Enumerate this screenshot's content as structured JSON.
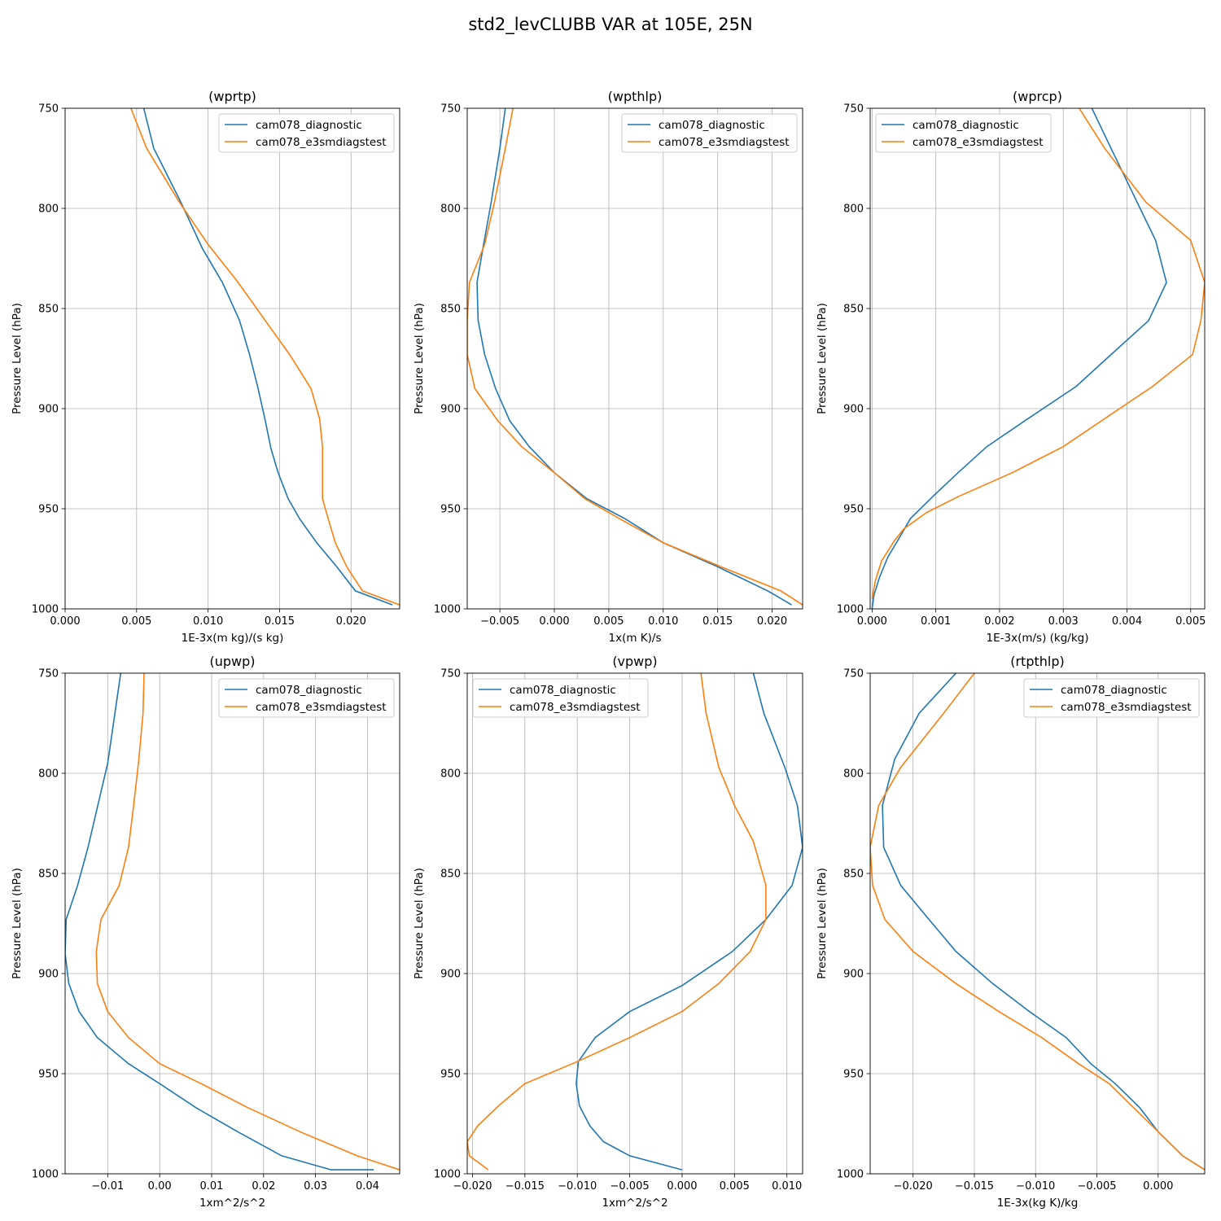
{
  "figure_title": "std2_levCLUBB VAR at 105E, 25N",
  "colors": {
    "cam078_diagnostic": "#1f77b4",
    "cam078_e3smdiagstest": "#ff7f0e",
    "grid": "#b0b0b0"
  },
  "chart_data": [
    {
      "type": "line",
      "title": "(wprtp)",
      "xlabel": "1E-3x(m kg)/(s kg)",
      "ylabel": "Pressure Level (hPa)",
      "xlim": [
        0.0,
        0.0234
      ],
      "ylim": [
        1000,
        750
      ],
      "xticks": [
        0.0,
        0.005,
        0.01,
        0.015,
        0.02
      ],
      "xtick_labels": [
        "0.000",
        "0.005",
        "0.010",
        "0.015",
        "0.020"
      ],
      "yticks": [
        750,
        800,
        850,
        900,
        950,
        1000
      ],
      "ytick_labels": [
        "750",
        "800",
        "850",
        "900",
        "950",
        "1000"
      ],
      "grid": true,
      "legend": "upper right",
      "series": [
        {
          "name": "cam078_diagnostic",
          "x": [
            0.0055,
            0.0062,
            0.0081,
            0.0096,
            0.011,
            0.0122,
            0.0129,
            0.0135,
            0.014,
            0.0144,
            0.0149,
            0.0156,
            0.0164,
            0.0176,
            0.019,
            0.0203,
            0.0229
          ],
          "y": [
            750,
            770,
            797,
            820,
            837,
            856,
            873,
            890,
            906,
            920,
            932,
            945,
            955,
            967,
            979,
            991,
            998
          ]
        },
        {
          "name": "cam078_e3smdiagstest",
          "x": [
            0.0046,
            0.0057,
            0.008,
            0.01,
            0.012,
            0.014,
            0.0157,
            0.0172,
            0.0178,
            0.018,
            0.018,
            0.0184,
            0.0189,
            0.0197,
            0.0208,
            0.0234
          ],
          "y": [
            750,
            770,
            797,
            818,
            836,
            856,
            873,
            890,
            905,
            919,
            945,
            955,
            967,
            979,
            991,
            998
          ]
        }
      ]
    },
    {
      "type": "line",
      "title": "(wpthlp)",
      "xlabel": "1x(m K)/s",
      "ylabel": "Pressure Level (hPa)",
      "xlim": [
        -0.008,
        0.0228
      ],
      "ylim": [
        1000,
        750
      ],
      "xticks": [
        -0.005,
        0.0,
        0.005,
        0.01,
        0.015,
        0.02
      ],
      "xtick_labels": [
        "−0.005",
        "0.000",
        "0.005",
        "0.010",
        "0.015",
        "0.020"
      ],
      "yticks": [
        750,
        800,
        850,
        900,
        950,
        1000
      ],
      "ytick_labels": [
        "750",
        "800",
        "850",
        "900",
        "950",
        "1000"
      ],
      "grid": true,
      "legend": "upper right",
      "series": [
        {
          "name": "cam078_diagnostic",
          "x": [
            -0.0045,
            -0.005,
            -0.0058,
            -0.0065,
            -0.0071,
            -0.007,
            -0.0064,
            -0.0054,
            -0.0041,
            -0.0023,
            0.0,
            0.003,
            0.0065,
            0.01,
            0.015,
            0.0196,
            0.0218
          ],
          "y": [
            750,
            770,
            797,
            818,
            837,
            856,
            873,
            890,
            906,
            919,
            932,
            945,
            955,
            967,
            979,
            991,
            998
          ]
        },
        {
          "name": "cam078_e3smdiagstest",
          "x": [
            -0.0038,
            -0.0045,
            -0.0055,
            -0.0064,
            -0.0078,
            -0.008,
            -0.008,
            -0.0073,
            -0.0052,
            -0.003,
            0.0,
            0.0028,
            0.006,
            0.01,
            0.0153,
            0.0208,
            0.0228
          ],
          "y": [
            750,
            770,
            797,
            818,
            837,
            856,
            873,
            890,
            906,
            919,
            932,
            945,
            955,
            967,
            979,
            991,
            998
          ]
        }
      ]
    },
    {
      "type": "line",
      "title": "(wprcp)",
      "xlabel": "1E-3x(m/s) (kg/kg)",
      "ylabel": "Pressure Level (hPa)",
      "xlim": [
        -3e-05,
        0.00522
      ],
      "ylim": [
        1000,
        750
      ],
      "xticks": [
        0.0,
        0.001,
        0.002,
        0.003,
        0.004,
        0.005
      ],
      "xtick_labels": [
        "0.000",
        "0.001",
        "0.002",
        "0.003",
        "0.004",
        "0.005"
      ],
      "yticks": [
        750,
        800,
        850,
        900,
        950,
        1000
      ],
      "ytick_labels": [
        "750",
        "800",
        "850",
        "900",
        "950",
        "1000"
      ],
      "grid": true,
      "legend": "upper left",
      "series": [
        {
          "name": "cam078_diagnostic",
          "x": [
            0.00345,
            0.00375,
            0.0041,
            0.00445,
            0.00462,
            0.00434,
            0.00375,
            0.0032,
            0.0024,
            0.0018,
            0.00135,
            0.00095,
            0.0006,
            0.0004,
            0.00025,
            0.00012,
            3e-05,
            0.0
          ],
          "y": [
            750,
            770,
            793,
            816,
            837,
            856,
            873,
            889,
            906,
            919,
            932,
            944,
            955,
            966,
            974,
            984,
            993,
            1000
          ]
        },
        {
          "name": "cam078_e3smdiagstest",
          "x": [
            0.00325,
            0.00365,
            0.0043,
            0.005,
            0.00522,
            0.00516,
            0.00503,
            0.0044,
            0.00365,
            0.003,
            0.0022,
            0.00135,
            0.00085,
            0.0005,
            0.00035,
            0.00015,
            5e-05,
            0.0
          ],
          "y": [
            750,
            770,
            797,
            816,
            837,
            856,
            873,
            889,
            905,
            919,
            932,
            944,
            952,
            960,
            966,
            976,
            986,
            995
          ]
        }
      ]
    },
    {
      "type": "line",
      "title": "(upwp)",
      "xlabel": "1xm^2/s^2",
      "ylabel": "Pressure Level (hPa)",
      "xlim": [
        -0.0182,
        0.0462
      ],
      "ylim": [
        1000,
        750
      ],
      "xticks": [
        -0.01,
        0.0,
        0.01,
        0.02,
        0.03,
        0.04
      ],
      "xtick_labels": [
        "−0.01",
        "0.00",
        "0.01",
        "0.02",
        "0.03",
        "0.04"
      ],
      "yticks": [
        750,
        800,
        850,
        900,
        950,
        1000
      ],
      "ytick_labels": [
        "750",
        "800",
        "850",
        "900",
        "950",
        "1000"
      ],
      "grid": true,
      "legend": "upper right",
      "series": [
        {
          "name": "cam078_diagnostic",
          "x": [
            -0.0075,
            -0.01,
            -0.012,
            -0.0138,
            -0.0158,
            -0.018,
            -0.0182,
            -0.0175,
            -0.0155,
            -0.012,
            -0.006,
            0.0,
            0.007,
            0.015,
            0.0235,
            0.033,
            0.0412
          ],
          "y": [
            750,
            795,
            817,
            837,
            856,
            873,
            890,
            905,
            919,
            932,
            945,
            955,
            967,
            979,
            991,
            998,
            998
          ]
        },
        {
          "name": "cam078_e3smdiagstest",
          "x": [
            -0.003,
            -0.0032,
            -0.004,
            -0.005,
            -0.006,
            -0.0078,
            -0.0113,
            -0.0122,
            -0.012,
            -0.01,
            -0.006,
            0.0,
            0.008,
            0.017,
            0.027,
            0.038,
            0.0462
          ],
          "y": [
            750,
            770,
            793,
            816,
            837,
            856,
            873,
            889,
            905,
            919,
            932,
            945,
            955,
            967,
            979,
            991,
            998
          ]
        }
      ]
    },
    {
      "type": "line",
      "title": "(vpwp)",
      "xlabel": "1xm^2/s^2",
      "ylabel": "Pressure Level (hPa)",
      "xlim": [
        -0.0205,
        0.0115
      ],
      "ylim": [
        1000,
        750
      ],
      "xticks": [
        -0.02,
        -0.015,
        -0.01,
        -0.005,
        0.0,
        0.005,
        0.01
      ],
      "xtick_labels": [
        "−0.020",
        "−0.015",
        "−0.010",
        "−0.005",
        "0.000",
        "0.005",
        "0.010"
      ],
      "yticks": [
        750,
        800,
        850,
        900,
        950,
        1000
      ],
      "ytick_labels": [
        "750",
        "800",
        "850",
        "900",
        "950",
        "1000"
      ],
      "grid": true,
      "legend": "upper left",
      "series": [
        {
          "name": "cam078_diagnostic",
          "x": [
            0.0068,
            0.0078,
            0.0098,
            0.011,
            0.0115,
            0.0105,
            0.008,
            0.0048,
            0.0,
            -0.005,
            -0.0083,
            -0.0099,
            -0.0101,
            -0.0098,
            -0.0088,
            -0.0075,
            -0.005,
            0.0
          ],
          "y": [
            750,
            770,
            797,
            816,
            837,
            856,
            873,
            889,
            906,
            919,
            932,
            944,
            955,
            966,
            976,
            984,
            991,
            998
          ]
        },
        {
          "name": "cam078_e3smdiagstest",
          "x": [
            0.0018,
            0.0023,
            0.0035,
            0.005,
            0.0068,
            0.008,
            0.008,
            0.0065,
            0.0035,
            0.0,
            -0.005,
            -0.01,
            -0.015,
            -0.0175,
            -0.0195,
            -0.0205,
            -0.0203,
            -0.0185
          ],
          "y": [
            750,
            770,
            797,
            816,
            834,
            856,
            873,
            889,
            905,
            919,
            932,
            944,
            955,
            966,
            976,
            984,
            991,
            998
          ]
        }
      ]
    },
    {
      "type": "line",
      "title": "(rtpthlp)",
      "xlabel": "1E-3x(kg K)/kg",
      "ylabel": "Pressure Level (hPa)",
      "xlim": [
        -0.0235,
        0.0038
      ],
      "ylim": [
        1000,
        750
      ],
      "xticks": [
        -0.02,
        -0.015,
        -0.01,
        -0.005,
        0.0
      ],
      "xtick_labels": [
        "−0.020",
        "−0.015",
        "−0.010",
        "−0.005",
        "0.000"
      ],
      "yticks": [
        750,
        800,
        850,
        900,
        950,
        1000
      ],
      "ytick_labels": [
        "750",
        "800",
        "850",
        "900",
        "950",
        "1000"
      ],
      "grid": true,
      "legend": "upper right",
      "series": [
        {
          "name": "cam078_diagnostic",
          "x": [
            -0.0165,
            -0.0195,
            -0.0215,
            -0.0225,
            -0.0224,
            -0.021,
            -0.0187,
            -0.0165,
            -0.0135,
            -0.0105,
            -0.0075,
            -0.0055,
            -0.0035,
            -0.0015,
            0.0,
            0.002,
            0.0038
          ],
          "y": [
            750,
            770,
            793,
            816,
            837,
            856,
            873,
            889,
            905,
            919,
            932,
            945,
            955,
            967,
            979,
            991,
            998
          ]
        },
        {
          "name": "cam078_e3smdiagstest",
          "x": [
            -0.015,
            -0.0175,
            -0.021,
            -0.0228,
            -0.0235,
            -0.0233,
            -0.0223,
            -0.02,
            -0.0165,
            -0.013,
            -0.0095,
            -0.0065,
            -0.004,
            -0.002,
            0.0,
            0.002,
            0.0038
          ],
          "y": [
            750,
            770,
            797,
            816,
            837,
            856,
            873,
            889,
            905,
            919,
            932,
            945,
            955,
            967,
            979,
            991,
            998
          ]
        }
      ]
    }
  ]
}
